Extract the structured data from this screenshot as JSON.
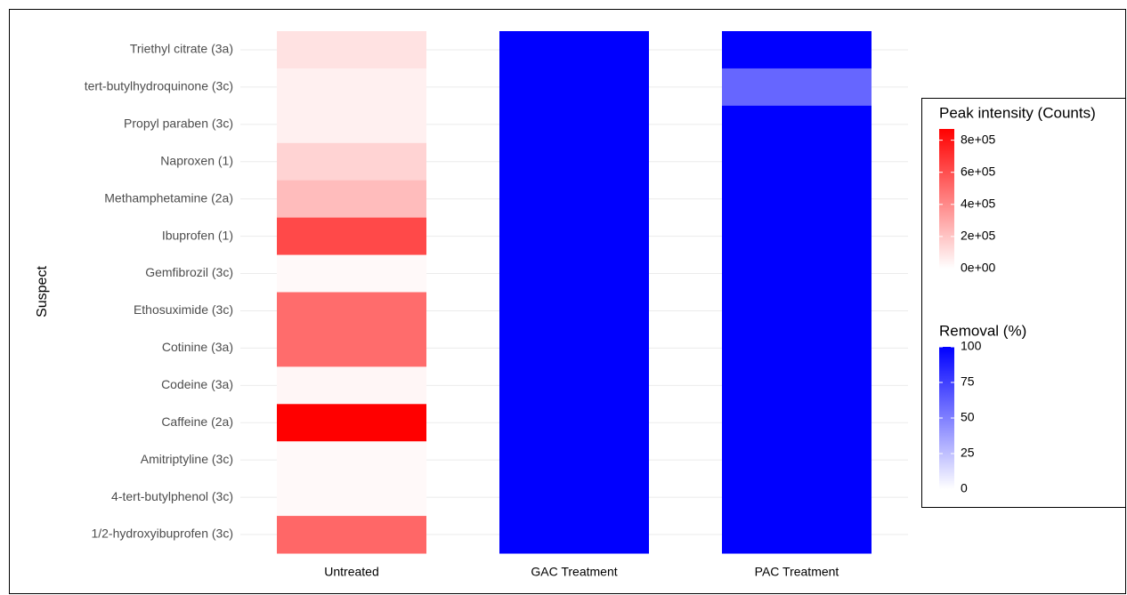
{
  "chart_data": {
    "type": "heatmap",
    "y_label": "Suspect",
    "rows": [
      "Triethyl citrate (3a)",
      "tert-butylhydroquinone (3c)",
      "Propyl paraben (3c)",
      "Naproxen (1)",
      "Methamphetamine (2a)",
      "Ibuprofen (1)",
      "Gemfibrozil (3c)",
      "Ethosuximide (3c)",
      "Cotinine (3a)",
      "Codeine (3a)",
      "Caffeine (2a)",
      "Amitriptyline (3c)",
      "4-tert-butylphenol (3c)",
      "1/2-hydroxyibuprofen (3c)"
    ],
    "series": [
      {
        "name": "Untreated",
        "scale": "intensity",
        "values": [
          100000,
          50000,
          50000,
          150000,
          230000,
          620000,
          20000,
          500000,
          500000,
          30000,
          870000,
          20000,
          20000,
          520000
        ]
      },
      {
        "name": "GAC Treatment",
        "scale": "removal",
        "values": [
          100,
          100,
          100,
          100,
          100,
          100,
          100,
          100,
          100,
          100,
          100,
          100,
          100,
          100
        ]
      },
      {
        "name": "PAC Treatment",
        "scale": "removal",
        "values": [
          100,
          60,
          100,
          100,
          100,
          100,
          100,
          100,
          100,
          100,
          100,
          100,
          100,
          100
        ]
      }
    ],
    "color_scales": {
      "intensity": {
        "title": "Peak intensity (Counts)",
        "low": "#ffffff",
        "high": "#ff0000",
        "lim": [
          0,
          870000
        ],
        "ticks": [
          {
            "value": 0,
            "label": "0e+00"
          },
          {
            "value": 200000,
            "label": "2e+05"
          },
          {
            "value": 400000,
            "label": "4e+05"
          },
          {
            "value": 600000,
            "label": "6e+05"
          },
          {
            "value": 800000,
            "label": "8e+05"
          }
        ]
      },
      "removal": {
        "title": "Removal (%)",
        "low": "#ffffff",
        "high": "#0000ff",
        "lim": [
          0,
          100
        ],
        "ticks": [
          0,
          25,
          50,
          75,
          100
        ]
      }
    },
    "grid": true
  }
}
